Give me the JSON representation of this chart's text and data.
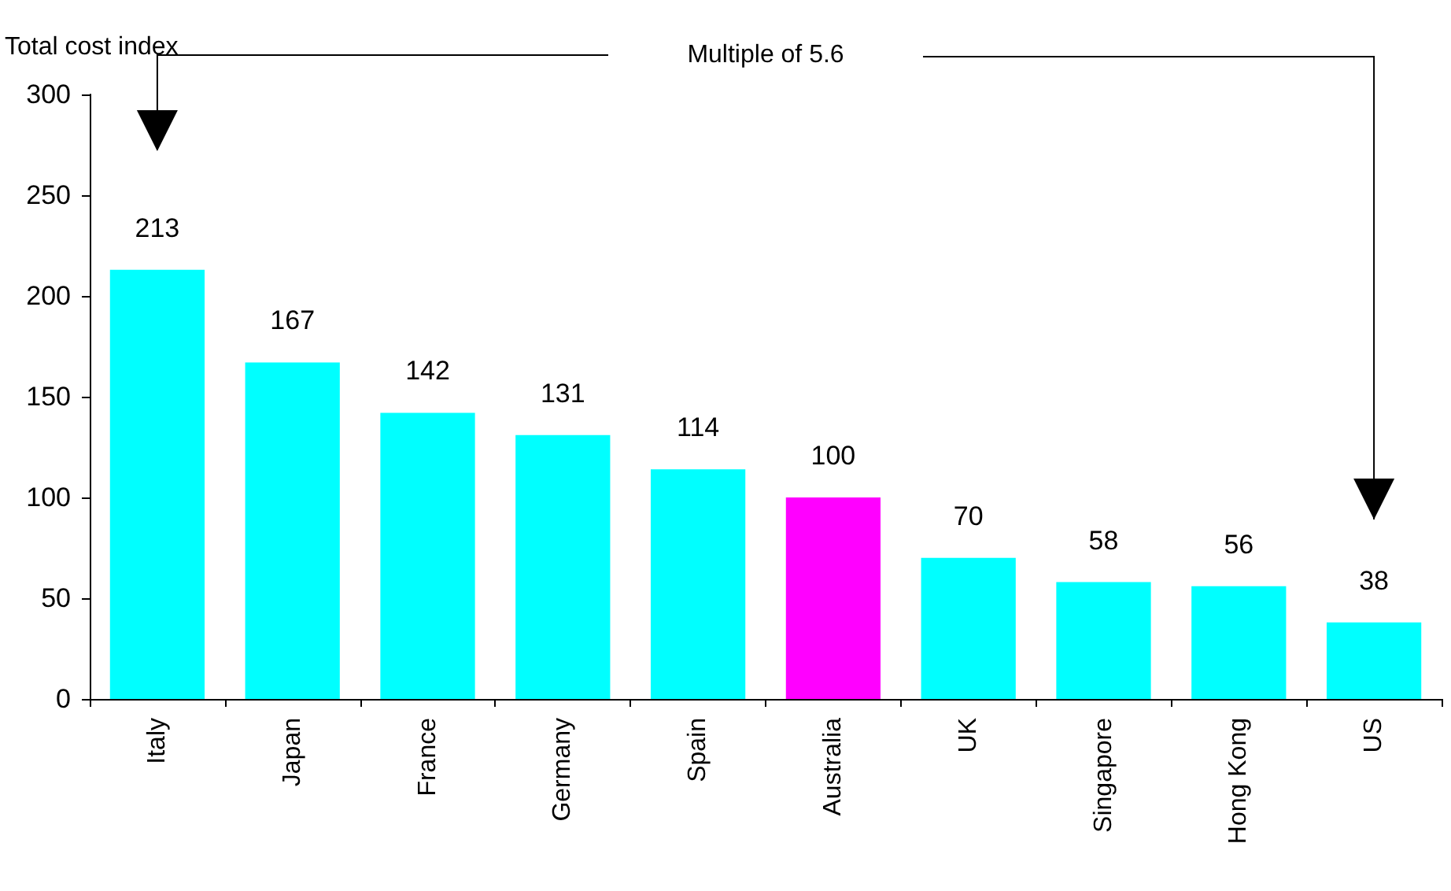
{
  "chart_data": {
    "type": "bar",
    "ylabel": "Total cost index",
    "categories": [
      "Italy",
      "Japan",
      "France",
      "Germany",
      "Spain",
      "Australia",
      "UK",
      "Singapore",
      "Hong Kong",
      "US"
    ],
    "values": [
      213,
      167,
      142,
      131,
      114,
      100,
      70,
      58,
      56,
      38
    ],
    "colors": [
      "#00ffff",
      "#00ffff",
      "#00ffff",
      "#00ffff",
      "#00ffff",
      "#ff00ff",
      "#00ffff",
      "#00ffff",
      "#00ffff",
      "#00ffff"
    ],
    "ylim": [
      0,
      300
    ],
    "yticks": [
      0,
      50,
      100,
      150,
      200,
      250,
      300
    ],
    "data_labels": true,
    "grid": false,
    "annotations": [
      "Multiple of 5.6"
    ]
  }
}
